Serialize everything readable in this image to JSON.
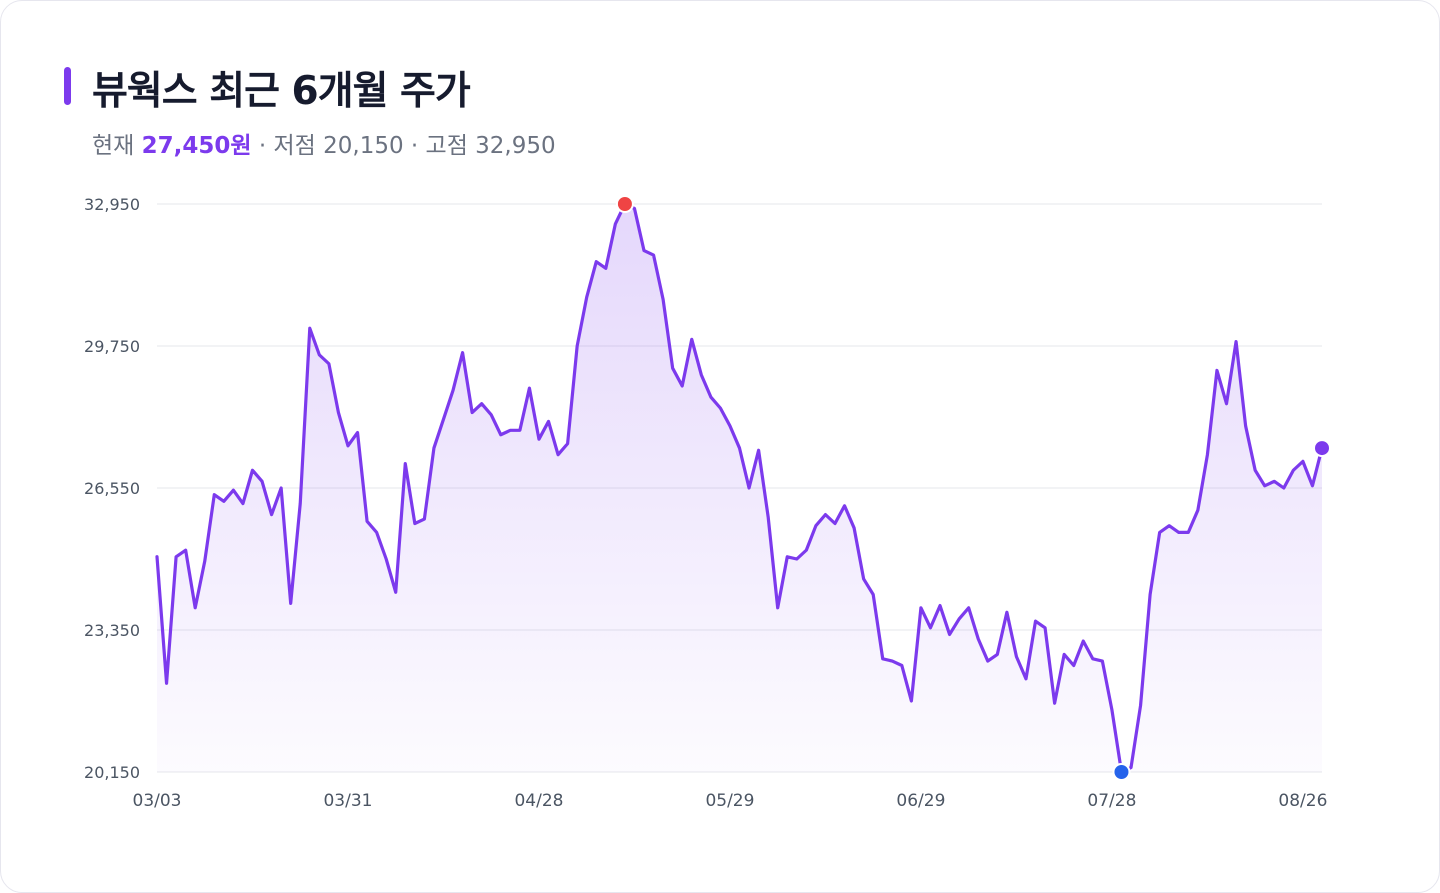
{
  "title": "뷰웍스 최근 6개월 주가",
  "subtitle": {
    "current_prefix": "현재",
    "current_value": "27,450원",
    "rest": "· 저점 20,150 · 고점 32,950"
  },
  "colors": {
    "accent": "#7c3aed",
    "line": "#7c3aed",
    "low_marker": "#2563eb",
    "high_marker": "#ef4444",
    "last_marker": "#7c3aed",
    "grid": "#e5e7eb"
  },
  "chart_data": {
    "type": "area",
    "title": "뷰웍스 최근 6개월 주가",
    "xlabel": "",
    "ylabel": "",
    "ylim": [
      20150,
      32950
    ],
    "yticks": [
      32950,
      29750,
      26550,
      23350,
      20150
    ],
    "ytick_labels": [
      "32,950",
      "29,750",
      "26,550",
      "23,350",
      "20,150"
    ],
    "xtick_labels": [
      "03/03",
      "03/31",
      "04/28",
      "05/29",
      "06/29",
      "07/28",
      "08/26"
    ],
    "xtick_index": [
      0,
      20,
      40,
      60,
      80,
      100,
      120
    ],
    "grid": true,
    "legend": "none",
    "markers": {
      "high_index": 49,
      "low_index": 101,
      "last_index": 122
    },
    "series": [
      {
        "values": [
          25000,
          22150,
          25000,
          25150,
          23850,
          24900,
          26400,
          26250,
          26500,
          26200,
          26950,
          26700,
          25950,
          26550,
          23950,
          26200,
          30150,
          29550,
          29350,
          28250,
          27500,
          27800,
          25800,
          25550,
          24950,
          24200,
          27100,
          25750,
          25850,
          27450,
          28100,
          28750,
          29600,
          28250,
          28450,
          28200,
          27750,
          27850,
          27850,
          28800,
          27650,
          28050,
          27300,
          27550,
          29750,
          30850,
          31650,
          31500,
          32500,
          32950,
          32850,
          31900,
          31800,
          30800,
          29250,
          28850,
          29900,
          29100,
          28600,
          28350,
          27950,
          27450,
          26550,
          27400,
          25900,
          23850,
          25000,
          24950,
          25150,
          25700,
          25950,
          25750,
          26150,
          25650,
          24500,
          24150,
          22700,
          22650,
          22550,
          21750,
          23850,
          23400,
          23900,
          23250,
          23600,
          23850,
          23150,
          22650,
          22800,
          23750,
          22750,
          22250,
          23550,
          23400,
          21700,
          22800,
          22550,
          23100,
          22700,
          22650,
          21550,
          20150,
          20250,
          21650,
          24150,
          25550,
          25700,
          25550,
          25550,
          26050,
          27300,
          29200,
          28450,
          29850,
          27950,
          26950,
          26600,
          26700,
          26550,
          26950,
          27150,
          26600,
          27450
        ]
      }
    ]
  }
}
